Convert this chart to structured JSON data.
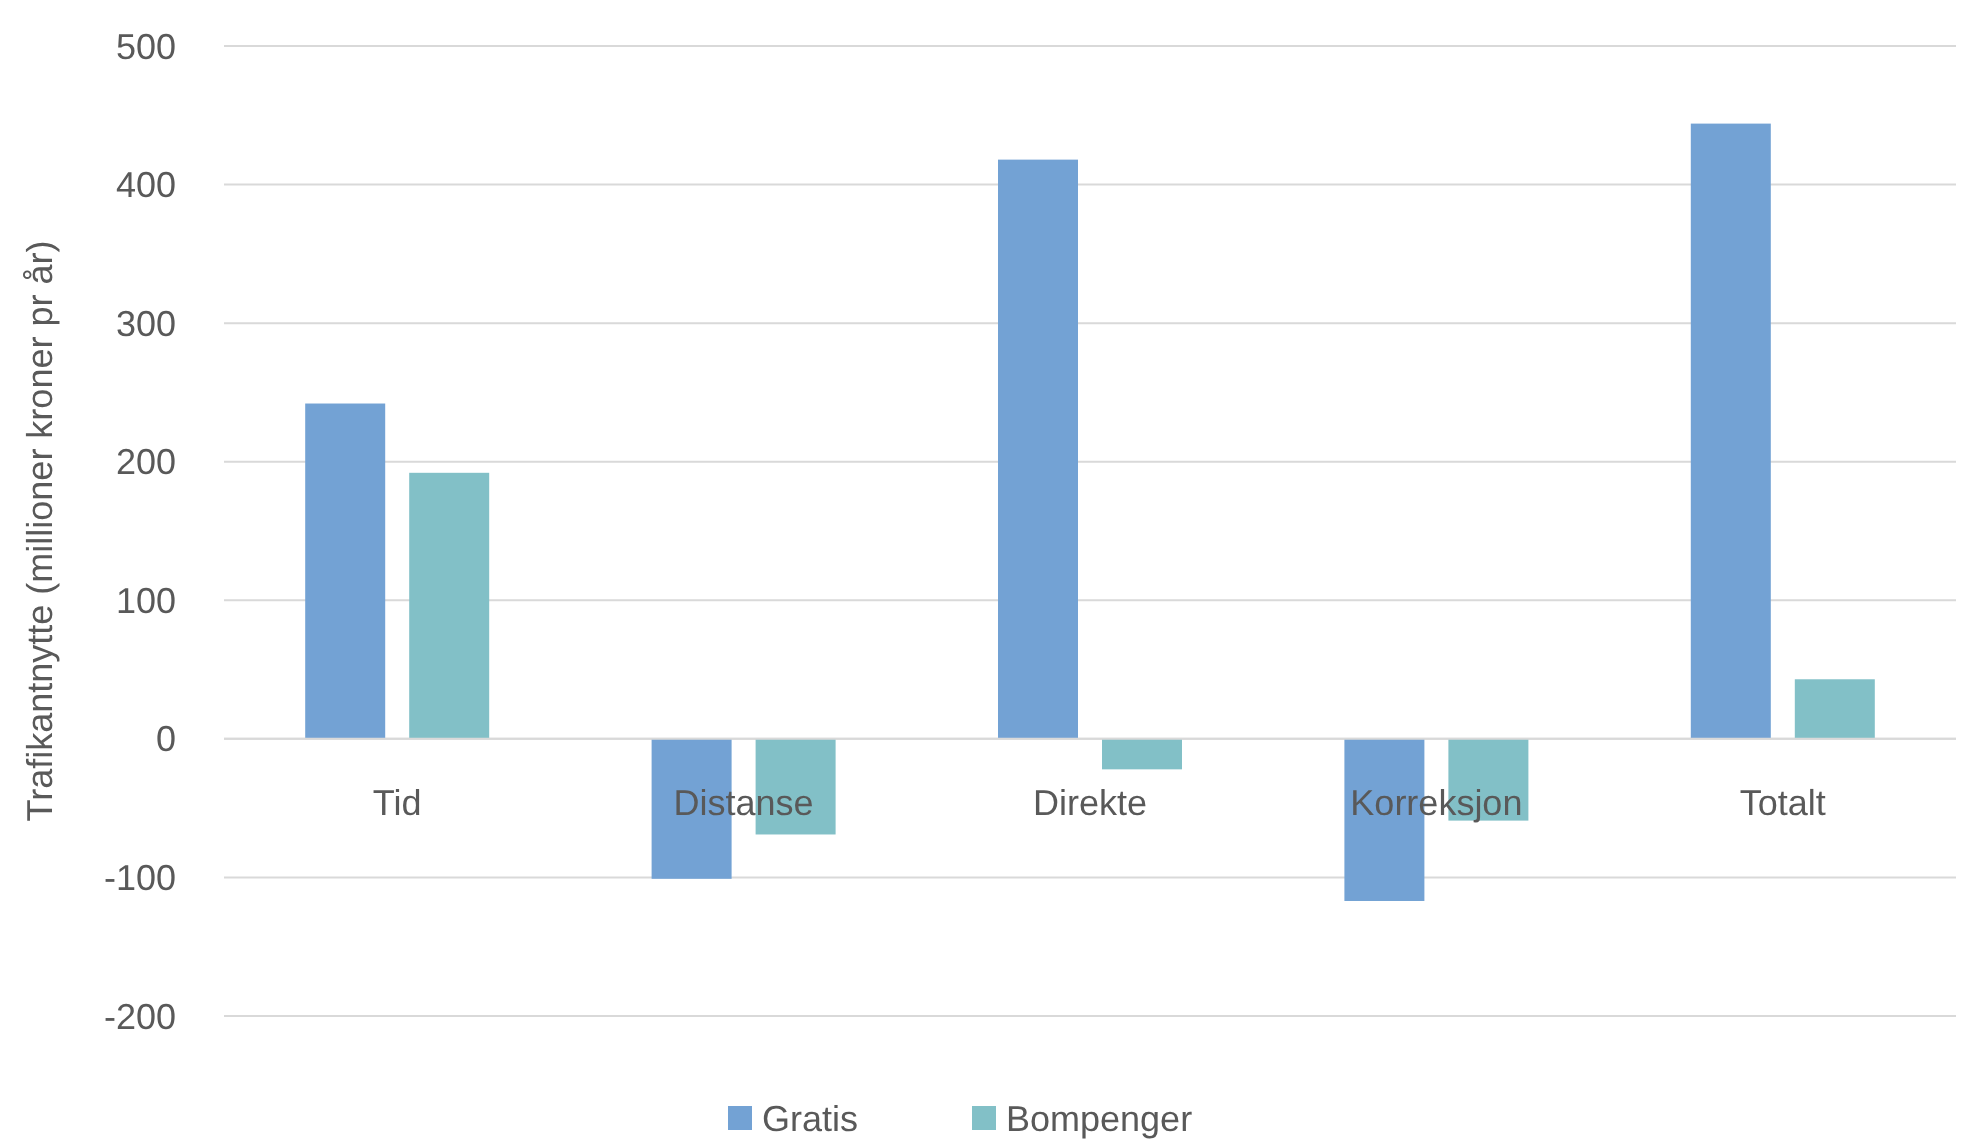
{
  "chart_data": {
    "type": "bar",
    "ylabel": "Trafikantnytte (millioner kroner pr år)",
    "categories": [
      "Tid",
      "Distanse",
      "Direkte",
      "Korreksjon",
      "Totalt"
    ],
    "series": [
      {
        "name": "Gratis",
        "color": "#73a2d4",
        "values": [
          242,
          -101,
          418,
          -117,
          444
        ]
      },
      {
        "name": "Bompenger",
        "color": "#82c0c7",
        "values": [
          192,
          -69,
          -22,
          -59,
          43
        ]
      }
    ],
    "ylim": [
      -200,
      500
    ],
    "yticks": [
      -200,
      -100,
      0,
      100,
      200,
      300,
      400,
      500
    ],
    "grid": "y",
    "legend": "bottom"
  }
}
